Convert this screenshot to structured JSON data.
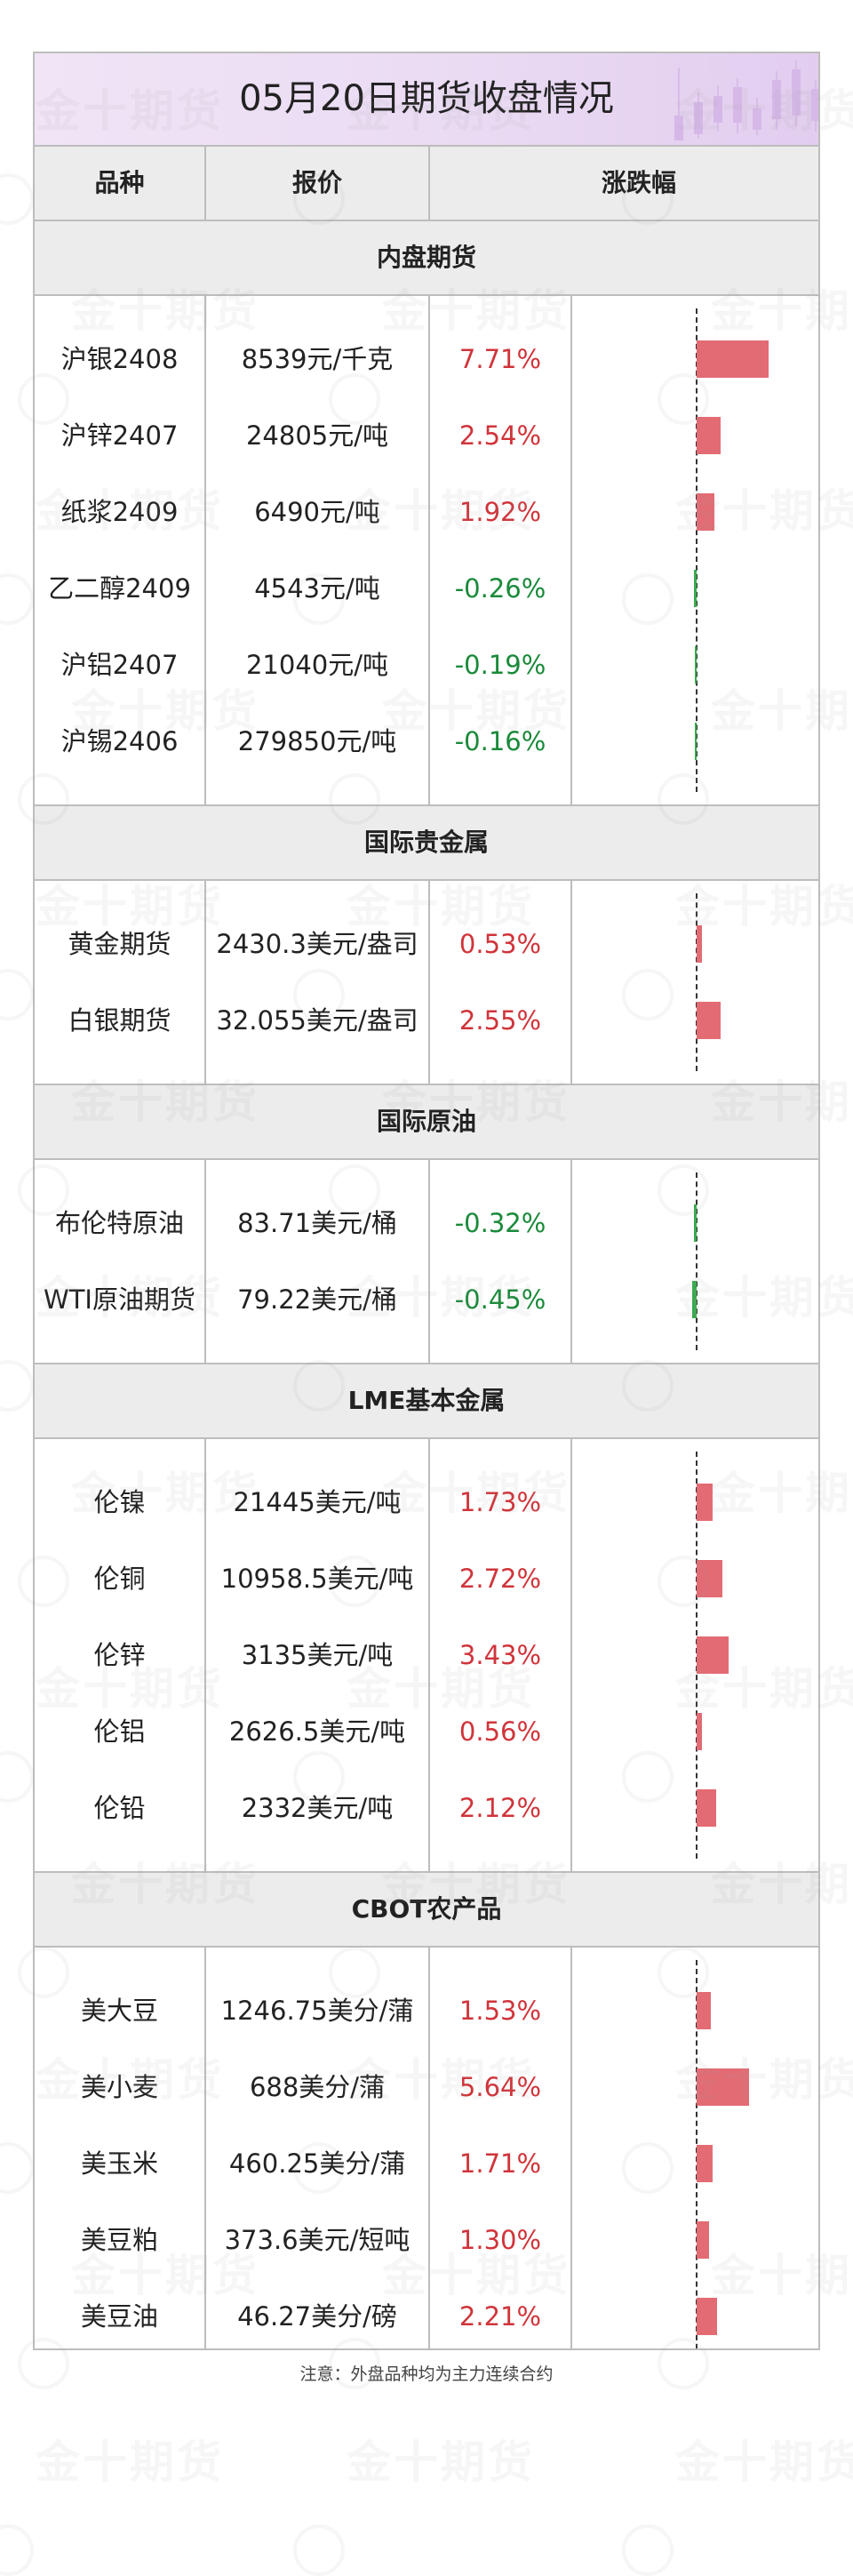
{
  "title": "05月20日期货收盘情况",
  "columns": [
    "品种",
    "报价",
    "涨跌幅"
  ],
  "watermark_text": "金十期货",
  "colors": {
    "up": "#d0343a",
    "down": "#1a8a3a",
    "bar_up": "#e36b74",
    "bar_down": "#39a94e",
    "title_bg": "#eadbf3",
    "header_bg": "#ececec"
  },
  "sections": [
    {
      "name": "内盘期货",
      "rows": [
        {
          "name": "沪银2408",
          "price": "8539元/千克",
          "change": "7.71%",
          "value": 7.71
        },
        {
          "name": "沪锌2407",
          "price": "24805元/吨",
          "change": "2.54%",
          "value": 2.54
        },
        {
          "name": "纸浆2409",
          "price": "6490元/吨",
          "change": "1.92%",
          "value": 1.92
        },
        {
          "name": "乙二醇2409",
          "price": "4543元/吨",
          "change": "-0.26%",
          "value": -0.26
        },
        {
          "name": "沪铝2407",
          "price": "21040元/吨",
          "change": "-0.19%",
          "value": -0.19
        },
        {
          "name": "沪锡2406",
          "price": "279850元/吨",
          "change": "-0.16%",
          "value": -0.16
        }
      ]
    },
    {
      "name": "国际贵金属",
      "rows": [
        {
          "name": "黄金期货",
          "price": "2430.3美元/盎司",
          "change": "0.53%",
          "value": 0.53
        },
        {
          "name": "白银期货",
          "price": "32.055美元/盎司",
          "change": "2.55%",
          "value": 2.55
        }
      ]
    },
    {
      "name": "国际原油",
      "rows": [
        {
          "name": "布伦特原油",
          "price": "83.71美元/桶",
          "change": "-0.32%",
          "value": -0.32
        },
        {
          "name": "WTI原油期货",
          "price": "79.22美元/桶",
          "change": "-0.45%",
          "value": -0.45
        }
      ]
    },
    {
      "name": "LME基本金属",
      "rows": [
        {
          "name": "伦镍",
          "price": "21445美元/吨",
          "change": "1.73%",
          "value": 1.73
        },
        {
          "name": "伦铜",
          "price": "10958.5美元/吨",
          "change": "2.72%",
          "value": 2.72
        },
        {
          "name": "伦锌",
          "price": "3135美元/吨",
          "change": "3.43%",
          "value": 3.43
        },
        {
          "name": "伦铝",
          "price": "2626.5美元/吨",
          "change": "0.56%",
          "value": 0.56
        },
        {
          "name": "伦铅",
          "price": "2332美元/吨",
          "change": "2.12%",
          "value": 2.12
        }
      ]
    },
    {
      "name": "CBOT农产品",
      "rows": [
        {
          "name": "美大豆",
          "price": "1246.75美分/蒲",
          "change": "1.53%",
          "value": 1.53
        },
        {
          "name": "美小麦",
          "price": "688美分/蒲",
          "change": "5.64%",
          "value": 5.64
        },
        {
          "name": "美玉米",
          "price": "460.25美分/蒲",
          "change": "1.71%",
          "value": 1.71
        },
        {
          "name": "美豆粕",
          "price": "373.6美元/短吨",
          "change": "1.30%",
          "value": 1.3
        },
        {
          "name": "美豆油",
          "price": "46.27美分/磅",
          "change": "2.21%",
          "value": 2.21
        }
      ]
    }
  ],
  "footnote": "注意：外盘品种均为主力连续合约"
}
